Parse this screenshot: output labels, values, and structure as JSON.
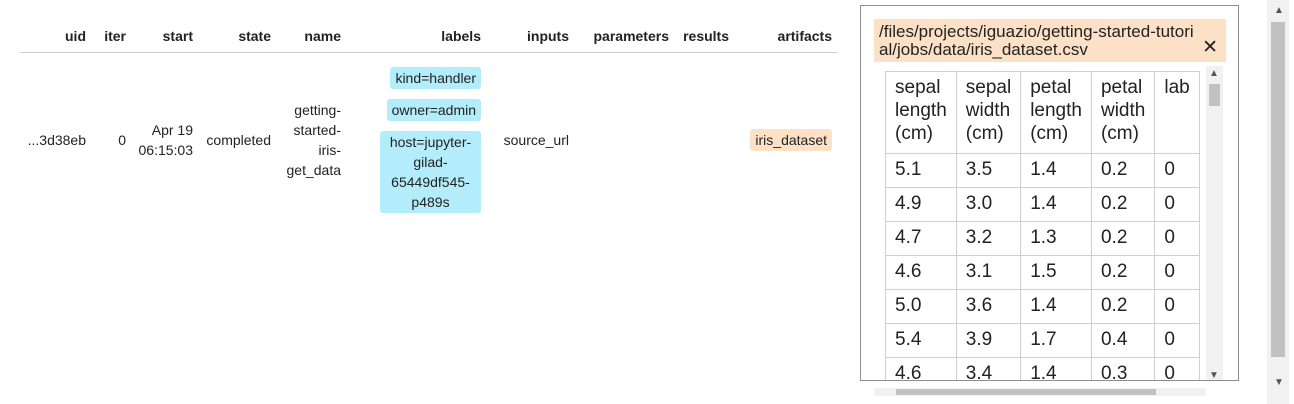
{
  "table": {
    "headers": [
      "uid",
      "iter",
      "start",
      "state",
      "name",
      "labels",
      "inputs",
      "parameters",
      "results",
      "artifacts"
    ],
    "row": {
      "uid": "...3d38eb",
      "iter": "0",
      "start_date": "Apr 19",
      "start_time": "06:15:03",
      "state": "completed",
      "name_lines": [
        "getting-",
        "started-",
        "iris-",
        "get_data"
      ],
      "labels": [
        "kind=handler",
        "owner=admin"
      ],
      "host_label_lines": [
        "host=jupyter-",
        "gilad-",
        "65449df545-",
        "p489s"
      ],
      "inputs": "source_url",
      "parameters": "",
      "results": "",
      "artifacts": "iris_dataset"
    }
  },
  "popup": {
    "title": "/files/projects/iguazio/getting-started-tutorial/jobs/data/iris_dataset.csv",
    "close": "✕",
    "columns": [
      [
        "sepal",
        "length",
        "(cm)"
      ],
      [
        "sepal",
        "width",
        "(cm)"
      ],
      [
        "petal",
        "length",
        "(cm)"
      ],
      [
        "petal",
        "width",
        "(cm)"
      ],
      [
        "lab",
        "",
        ""
      ]
    ],
    "rows": [
      [
        "5.1",
        "3.5",
        "1.4",
        "0.2",
        "0"
      ],
      [
        "4.9",
        "3.0",
        "1.4",
        "0.2",
        "0"
      ],
      [
        "4.7",
        "3.2",
        "1.3",
        "0.2",
        "0"
      ],
      [
        "4.6",
        "3.1",
        "1.5",
        "0.2",
        "0"
      ],
      [
        "5.0",
        "3.6",
        "1.4",
        "0.2",
        "0"
      ],
      [
        "5.4",
        "3.9",
        "1.7",
        "0.4",
        "0"
      ],
      [
        "4.6",
        "3.4",
        "1.4",
        "0.3",
        "0"
      ]
    ]
  },
  "colors": {
    "label_pill": "#b3ecfb",
    "artifact_pill": "#fde1c7",
    "popup_header": "#fde1c7"
  }
}
